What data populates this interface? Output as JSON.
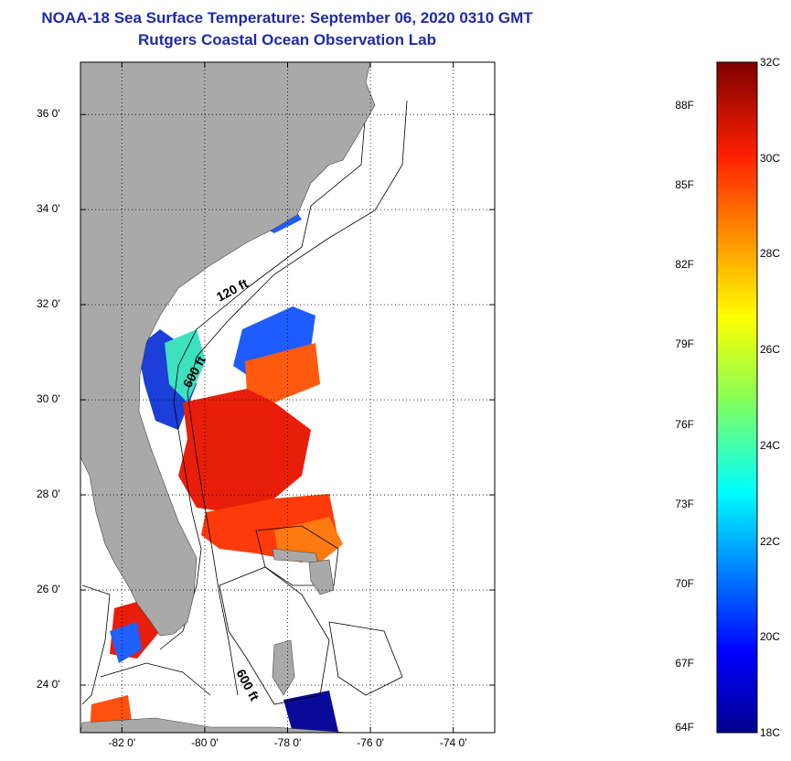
{
  "header": {
    "title": "NOAA-18 Sea Surface Temperature:  September 06, 2020 0310 GMT",
    "subtitle": "Rutgers Coastal Ocean Observation Lab"
  },
  "map": {
    "lat_ticks": [
      {
        "value": 36,
        "label": "36 0'"
      },
      {
        "value": 34,
        "label": "34 0'"
      },
      {
        "value": 32,
        "label": "32 0'"
      },
      {
        "value": 30,
        "label": "30 0'"
      },
      {
        "value": 28,
        "label": "28 0'"
      },
      {
        "value": 26,
        "label": "26 0'"
      },
      {
        "value": 24,
        "label": "24 0'"
      }
    ],
    "lon_ticks": [
      {
        "value": -82,
        "label": "-82 0'"
      },
      {
        "value": -80,
        "label": "-80 0'"
      },
      {
        "value": -78,
        "label": "-78 0'"
      },
      {
        "value": -76,
        "label": "-76 0'"
      },
      {
        "value": -74,
        "label": "-74 0'"
      }
    ],
    "lon_range": [
      -83.0,
      -73.0
    ],
    "lat_range": [
      23.0,
      37.1
    ],
    "grid": "dotted",
    "contour_labels": [
      "120 ft",
      "600 ft",
      "600 ft"
    ],
    "land_color": "#a9a9a9"
  },
  "colorbar": {
    "f_labels": [
      "88F",
      "85F",
      "82F",
      "79F",
      "76F",
      "73F",
      "70F",
      "67F",
      "64F"
    ],
    "c_labels": [
      "32C",
      "30C",
      "28C",
      "26C",
      "24C",
      "22C",
      "20C",
      "18C"
    ],
    "range_c": [
      18,
      32
    ]
  }
}
